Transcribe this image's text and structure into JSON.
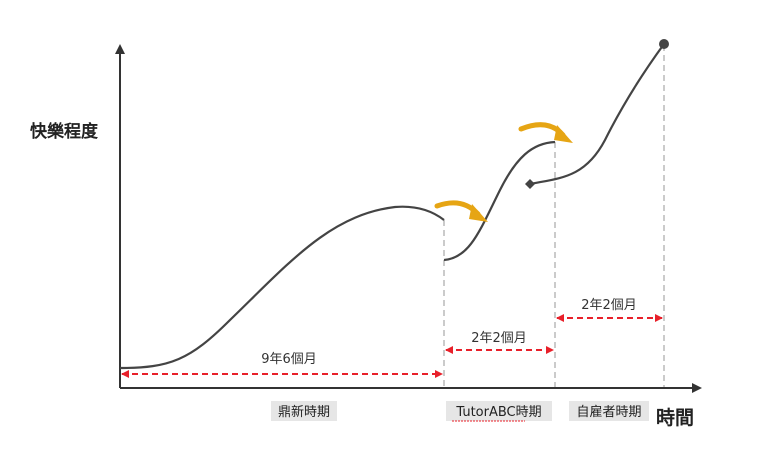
{
  "y_axis_label": "快樂程度",
  "x_axis_label": "時間",
  "periods": [
    {
      "name": "鼎新時期",
      "duration": "9年6個月"
    },
    {
      "name": "TutorABC時期",
      "duration": "2年2個月"
    },
    {
      "name": "自雇者時期",
      "duration": "2年2個月"
    }
  ],
  "colors": {
    "curve": "#444444",
    "axis": "#333333",
    "duration_arrow": "#e8202a",
    "divider": "#b5b5b5",
    "transition_arrow": "#e6a514",
    "period_label_bg": "#e6e6e6"
  }
}
